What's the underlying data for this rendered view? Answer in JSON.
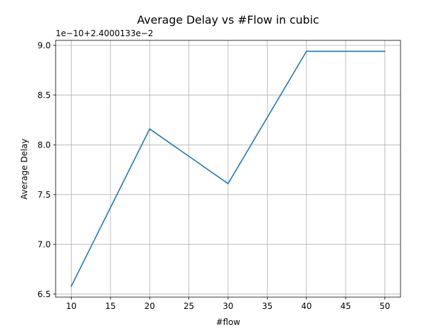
{
  "chart_data": {
    "type": "line",
    "title": "Average Delay vs #Flow in cubic",
    "xlabel": "#flow",
    "ylabel": "Average Delay",
    "offset_label": "1e−10+2.4000133e−2",
    "xlim": [
      8,
      52
    ],
    "ylim": [
      6.47,
      9.05
    ],
    "grid": true,
    "x_ticks": [
      10,
      15,
      20,
      25,
      30,
      35,
      40,
      45,
      50
    ],
    "x_tick_labels": [
      "10",
      "15",
      "20",
      "25",
      "30",
      "35",
      "40",
      "45",
      "50"
    ],
    "y_ticks": [
      6.5,
      7.0,
      7.5,
      8.0,
      8.5,
      9.0
    ],
    "y_tick_labels": [
      "6.5",
      "7.0",
      "7.5",
      "8.0",
      "8.5",
      "9.0"
    ],
    "series": [
      {
        "color": "#1f77b4",
        "x": [
          10,
          20,
          30,
          40,
          50
        ],
        "y": [
          6.58,
          8.16,
          7.61,
          8.94,
          8.94
        ]
      }
    ]
  }
}
